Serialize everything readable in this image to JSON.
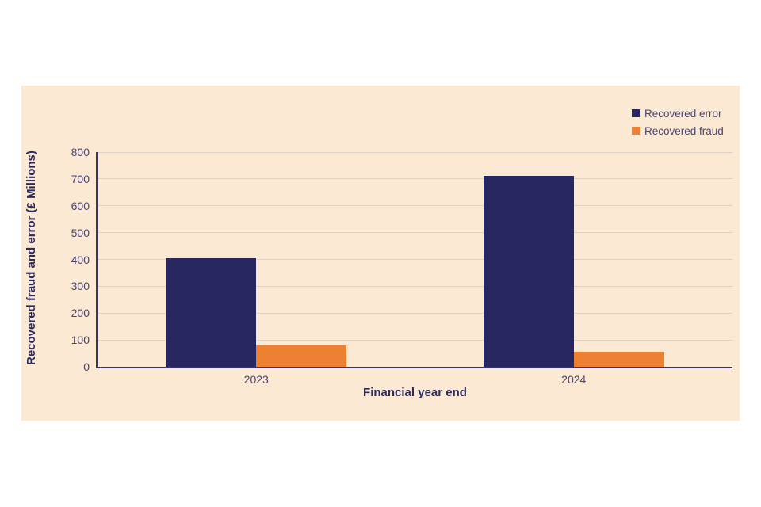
{
  "colors": {
    "page_bg": "#ffffff",
    "panel_bg": "#fce9d3",
    "gridline": "#ddd2c8",
    "axis": "#3a3366",
    "tick_text": "#4a4476",
    "title_text": "#2b295e"
  },
  "chart_data": {
    "type": "bar",
    "title": "",
    "categories": [
      "2023",
      "2024"
    ],
    "series": [
      {
        "name": "Recovered error",
        "values": [
          405,
          710
        ],
        "color": "#282660"
      },
      {
        "name": "Recovered fraud",
        "values": [
          80,
          55
        ],
        "color": "#ec8133"
      }
    ],
    "xlabel": "Financial year end",
    "ylabel": "Recovered fraud and error (£ Millions)",
    "ylim": [
      0,
      800
    ],
    "y_ticks": [
      0,
      100,
      200,
      300,
      400,
      500,
      600,
      700,
      800
    ],
    "grid": true,
    "legend_position": "top-right"
  }
}
